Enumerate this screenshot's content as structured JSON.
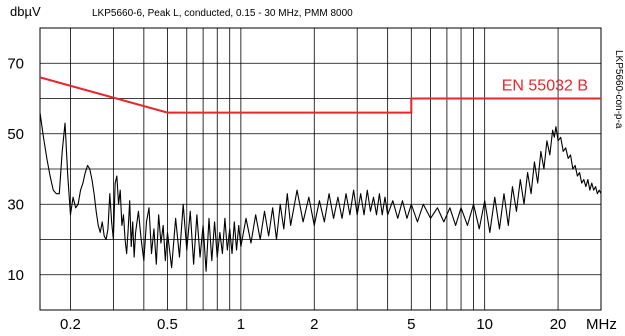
{
  "chart_data": {
    "type": "line",
    "ylabel": "dbµV",
    "subtitle": "LKP5660-6, Peak L, conducted, 0.15 - 30 MHz, PMM 8000",
    "side_label": "LKP5660-con-p-a",
    "x_unit_label": "MHz",
    "x_scale": "log",
    "xlim": [
      0.15,
      30
    ],
    "ylim": [
      0,
      80
    ],
    "x_tick_labels": [
      {
        "value": 0.2,
        "label": "0.2"
      },
      {
        "value": 0.5,
        "label": "0.5"
      },
      {
        "value": 1,
        "label": "1"
      },
      {
        "value": 2,
        "label": "2"
      },
      {
        "value": 5,
        "label": "5"
      },
      {
        "value": 10,
        "label": "10"
      },
      {
        "value": 20,
        "label": "20"
      }
    ],
    "x_grid": [
      0.2,
      0.3,
      0.4,
      0.5,
      0.6,
      0.7,
      0.8,
      0.9,
      1,
      2,
      3,
      4,
      5,
      6,
      7,
      8,
      9,
      10,
      20,
      30
    ],
    "y_tick_labels": [
      {
        "value": 10,
        "label": "10"
      },
      {
        "value": 30,
        "label": "30"
      },
      {
        "value": 50,
        "label": "50"
      },
      {
        "value": 70,
        "label": "70"
      }
    ],
    "y_grid": [
      10,
      20,
      30,
      40,
      50,
      60,
      70
    ],
    "grid": true,
    "limit_line": {
      "name": "EN 55032 B",
      "color": "#e8262d",
      "points": [
        [
          0.15,
          66
        ],
        [
          0.5,
          56
        ],
        [
          5,
          56
        ],
        [
          5,
          60
        ],
        [
          30,
          60
        ]
      ]
    },
    "series": [
      {
        "color": "#000000",
        "points": [
          [
            0.15,
            56
          ],
          [
            0.155,
            49
          ],
          [
            0.16,
            43
          ],
          [
            0.165,
            38
          ],
          [
            0.17,
            34
          ],
          [
            0.175,
            33
          ],
          [
            0.18,
            33
          ],
          [
            0.185,
            45
          ],
          [
            0.19,
            53
          ],
          [
            0.195,
            38
          ],
          [
            0.2,
            27
          ],
          [
            0.205,
            32
          ],
          [
            0.21,
            29
          ],
          [
            0.215,
            30
          ],
          [
            0.22,
            34
          ],
          [
            0.225,
            36
          ],
          [
            0.23,
            39
          ],
          [
            0.235,
            41
          ],
          [
            0.24,
            40
          ],
          [
            0.245,
            37
          ],
          [
            0.25,
            33
          ],
          [
            0.255,
            28
          ],
          [
            0.26,
            24
          ],
          [
            0.265,
            22
          ],
          [
            0.27,
            25
          ],
          [
            0.275,
            21
          ],
          [
            0.28,
            20
          ],
          [
            0.285,
            23
          ],
          [
            0.29,
            33
          ],
          [
            0.295,
            25
          ],
          [
            0.3,
            20
          ],
          [
            0.305,
            36
          ],
          [
            0.31,
            38
          ],
          [
            0.315,
            30
          ],
          [
            0.32,
            34
          ],
          [
            0.325,
            24
          ],
          [
            0.33,
            27
          ],
          [
            0.335,
            20
          ],
          [
            0.34,
            16
          ],
          [
            0.345,
            23
          ],
          [
            0.35,
            31
          ],
          [
            0.355,
            18
          ],
          [
            0.36,
            25
          ],
          [
            0.365,
            15
          ],
          [
            0.37,
            22
          ],
          [
            0.38,
            28
          ],
          [
            0.39,
            20
          ],
          [
            0.4,
            14
          ],
          [
            0.41,
            25
          ],
          [
            0.42,
            29
          ],
          [
            0.43,
            16
          ],
          [
            0.44,
            23
          ],
          [
            0.45,
            13
          ],
          [
            0.46,
            27
          ],
          [
            0.47,
            19
          ],
          [
            0.48,
            24
          ],
          [
            0.49,
            14
          ],
          [
            0.5,
            22
          ],
          [
            0.52,
            12
          ],
          [
            0.54,
            26
          ],
          [
            0.56,
            15
          ],
          [
            0.58,
            30
          ],
          [
            0.6,
            17
          ],
          [
            0.62,
            28
          ],
          [
            0.64,
            13
          ],
          [
            0.66,
            27
          ],
          [
            0.68,
            15
          ],
          [
            0.7,
            24
          ],
          [
            0.72,
            11
          ],
          [
            0.74,
            26
          ],
          [
            0.76,
            14
          ],
          [
            0.78,
            25
          ],
          [
            0.8,
            15
          ],
          [
            0.82,
            22
          ],
          [
            0.84,
            16
          ],
          [
            0.86,
            26
          ],
          [
            0.88,
            17
          ],
          [
            0.9,
            23
          ],
          [
            0.92,
            16
          ],
          [
            0.94,
            25
          ],
          [
            0.96,
            17
          ],
          [
            0.98,
            24
          ],
          [
            1.0,
            18
          ],
          [
            1.05,
            26
          ],
          [
            1.1,
            19
          ],
          [
            1.15,
            27
          ],
          [
            1.2,
            20
          ],
          [
            1.25,
            28
          ],
          [
            1.3,
            21
          ],
          [
            1.35,
            29
          ],
          [
            1.4,
            20
          ],
          [
            1.45,
            30
          ],
          [
            1.5,
            23
          ],
          [
            1.55,
            33
          ],
          [
            1.6,
            24
          ],
          [
            1.7,
            34
          ],
          [
            1.8,
            25
          ],
          [
            1.9,
            32
          ],
          [
            2.0,
            24
          ],
          [
            2.1,
            31
          ],
          [
            2.2,
            25
          ],
          [
            2.3,
            33
          ],
          [
            2.4,
            26
          ],
          [
            2.5,
            32
          ],
          [
            2.6,
            26
          ],
          [
            2.7,
            33
          ],
          [
            2.8,
            27
          ],
          [
            2.9,
            34
          ],
          [
            3.0,
            27
          ],
          [
            3.1,
            33
          ],
          [
            3.2,
            27
          ],
          [
            3.3,
            34
          ],
          [
            3.4,
            28
          ],
          [
            3.5,
            32
          ],
          [
            3.6,
            27
          ],
          [
            3.7,
            33
          ],
          [
            3.8,
            27
          ],
          [
            3.9,
            32
          ],
          [
            4.0,
            27
          ],
          [
            4.2,
            31
          ],
          [
            4.4,
            26
          ],
          [
            4.6,
            31
          ],
          [
            4.8,
            26
          ],
          [
            5.0,
            30
          ],
          [
            5.3,
            25
          ],
          [
            5.6,
            30
          ],
          [
            6.0,
            26
          ],
          [
            6.4,
            29
          ],
          [
            6.8,
            25
          ],
          [
            7.2,
            29
          ],
          [
            7.6,
            24
          ],
          [
            8.0,
            29
          ],
          [
            8.5,
            24
          ],
          [
            9.0,
            30
          ],
          [
            9.5,
            23
          ],
          [
            10,
            31
          ],
          [
            10.5,
            22
          ],
          [
            11,
            32
          ],
          [
            11.5,
            23
          ],
          [
            12,
            33
          ],
          [
            12.5,
            24
          ],
          [
            13,
            35
          ],
          [
            13.5,
            28
          ],
          [
            14,
            37
          ],
          [
            14.5,
            30
          ],
          [
            15,
            39
          ],
          [
            15.5,
            33
          ],
          [
            16,
            42
          ],
          [
            16.5,
            36
          ],
          [
            17,
            45
          ],
          [
            17.5,
            40
          ],
          [
            18,
            48
          ],
          [
            18.5,
            44
          ],
          [
            19,
            51
          ],
          [
            19.3,
            49
          ],
          [
            19.6,
            52
          ],
          [
            20,
            48
          ],
          [
            20.5,
            49
          ],
          [
            21,
            45
          ],
          [
            21.5,
            46
          ],
          [
            22,
            43
          ],
          [
            22.5,
            44
          ],
          [
            23,
            40
          ],
          [
            23.5,
            41
          ],
          [
            24,
            38
          ],
          [
            24.5,
            39
          ],
          [
            25,
            36
          ],
          [
            25.5,
            37
          ],
          [
            26,
            35
          ],
          [
            26.5,
            37
          ],
          [
            27,
            34
          ],
          [
            27.5,
            36
          ],
          [
            28,
            34
          ],
          [
            28.5,
            35
          ],
          [
            29,
            33
          ],
          [
            29.5,
            34
          ],
          [
            30,
            33
          ]
        ]
      }
    ]
  }
}
